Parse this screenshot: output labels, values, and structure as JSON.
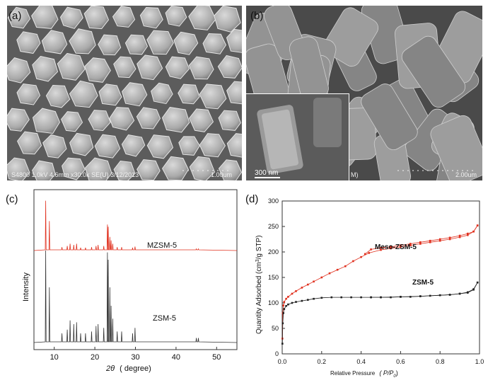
{
  "panel_a": {
    "label": "(a)",
    "sem_info": "S4800 1.0kV 4.6mm x30.0k SE(U) 3/12/2013",
    "scale_bar": "1.00um"
  },
  "panel_b": {
    "label": "(b)",
    "inset_scale": "300 nm",
    "inset_edge_text": "M)",
    "scale_bar": "2.00um"
  },
  "panel_c": {
    "label": "(c)",
    "chart_data": {
      "type": "line",
      "xlabel_symbol": "2θ",
      "xlabel_unit": "( degree)",
      "ylabel": "Intensity",
      "xlim": [
        5,
        55
      ],
      "xticks": [
        "10",
        "20",
        "30",
        "40",
        "50"
      ],
      "y_ticks_shown": false,
      "series": [
        {
          "name": "MZSM-5",
          "color": "#e0301e",
          "x": [
            5,
            7.9,
            8.8,
            11.9,
            13.2,
            13.9,
            14.8,
            15.5,
            16.5,
            17.7,
            19.2,
            20.3,
            20.8,
            22.2,
            23.1,
            23.3,
            23.7,
            24.0,
            24.4,
            25.5,
            26.6,
            29.3,
            29.9,
            45.0,
            45.5,
            55
          ],
          "y": [
            0,
            88,
            52,
            6,
            8,
            12,
            10,
            12,
            5,
            5,
            6,
            8,
            10,
            8,
            46,
            42,
            24,
            18,
            12,
            6,
            6,
            5,
            7,
            3,
            3,
            0
          ]
        },
        {
          "name": "ZSM-5",
          "color": "#333333",
          "x": [
            5,
            7.9,
            8.8,
            11.9,
            13.2,
            13.9,
            14.8,
            15.5,
            16.5,
            17.7,
            19.2,
            20.3,
            20.8,
            22.2,
            23.1,
            23.3,
            23.7,
            24.0,
            24.4,
            25.5,
            26.6,
            29.3,
            29.9,
            45.0,
            45.5,
            55
          ],
          "y": [
            0,
            100,
            60,
            10,
            14,
            24,
            20,
            22,
            10,
            10,
            12,
            18,
            20,
            16,
            98,
            90,
            60,
            40,
            26,
            12,
            12,
            10,
            16,
            5,
            5,
            0
          ]
        }
      ]
    }
  },
  "panel_d": {
    "label": "(d)",
    "chart_data": {
      "type": "line",
      "xlabel": "Relative Pressure",
      "xlabel_symbol": "( P/P",
      "xlabel_sub": "0",
      "xlabel_close": ")",
      "ylabel_pre": "Quantity Adsorbed (cm",
      "ylabel_sup": "3",
      "ylabel_post": "/g STP)",
      "xlim": [
        0,
        1.0
      ],
      "ylim": [
        0,
        300
      ],
      "xticks": [
        "0.0",
        "0.2",
        "0.4",
        "0.6",
        "0.8",
        "1.0"
      ],
      "yticks": [
        "0",
        "50",
        "100",
        "150",
        "200",
        "250",
        "300"
      ],
      "series": [
        {
          "name": "Meso-ZSM-5",
          "color": "#e0301e",
          "adsorption": {
            "x": [
              0.001,
              0.003,
              0.006,
              0.01,
              0.02,
              0.03,
              0.05,
              0.07,
              0.1,
              0.13,
              0.16,
              0.2,
              0.24,
              0.28,
              0.32,
              0.36,
              0.4,
              0.44,
              0.5,
              0.55,
              0.6,
              0.65,
              0.7,
              0.75,
              0.8,
              0.85,
              0.9,
              0.94,
              0.97,
              0.99
            ],
            "y": [
              30,
              80,
              95,
              102,
              108,
              112,
              118,
              123,
              130,
              136,
              142,
              150,
              158,
              165,
              172,
              182,
              190,
              198,
              204,
              207,
              210,
              213,
              216,
              219,
              222,
              225,
              229,
              233,
              240,
              252
            ]
          },
          "desorption": {
            "x": [
              0.99,
              0.97,
              0.94,
              0.9,
              0.85,
              0.8,
              0.75,
              0.7,
              0.65,
              0.6,
              0.55,
              0.5,
              0.45,
              0.42
            ],
            "y": [
              252,
              240,
              236,
              232,
              228,
              225,
              222,
              219,
              216,
              213,
              210,
              208,
              205,
              196
            ]
          }
        },
        {
          "name": "ZSM-5",
          "color": "#222222",
          "adsorption": {
            "x": [
              0.001,
              0.003,
              0.006,
              0.01,
              0.02,
              0.03,
              0.05,
              0.07,
              0.1,
              0.13,
              0.16,
              0.2,
              0.25,
              0.3,
              0.35,
              0.4,
              0.45,
              0.5,
              0.55,
              0.6,
              0.65,
              0.7,
              0.75,
              0.8,
              0.85,
              0.9,
              0.94,
              0.97,
              0.99
            ],
            "y": [
              20,
              60,
              80,
              88,
              94,
              97,
              100,
              102,
              104,
              106,
              108,
              110,
              111,
              111,
              111,
              111,
              111,
              111,
              111,
              112,
              112,
              113,
              114,
              115,
              116,
              118,
              120,
              126,
              140
            ]
          },
          "desorption": {
            "x": [
              0.99,
              0.97,
              0.94,
              0.9,
              0.85,
              0.8,
              0.7,
              0.6,
              0.5,
              0.45
            ],
            "y": [
              140,
              127,
              121,
              118,
              116,
              115,
              113,
              112,
              111,
              111
            ]
          }
        }
      ]
    }
  }
}
